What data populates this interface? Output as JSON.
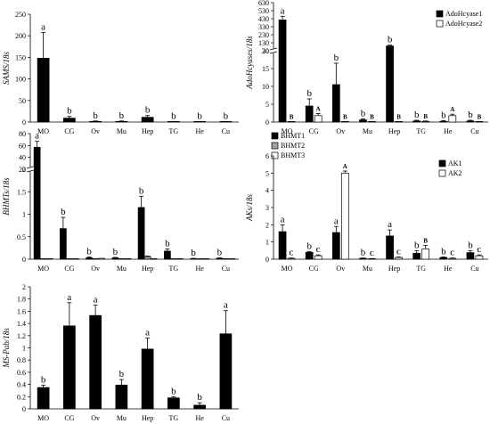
{
  "chart_data": [
    {
      "type": "bar",
      "ylabel": "SAMS/18s",
      "categories": [
        "MO",
        "CG",
        "Ov",
        "Mu",
        "Hep",
        "TG",
        "He",
        "Cu"
      ],
      "ylim": [
        0,
        250
      ],
      "yticks": [
        0,
        50,
        100,
        150,
        200,
        250
      ],
      "series": [
        {
          "values": [
            148,
            9,
            1.5,
            1.5,
            11,
            0.5,
            0.5,
            0.8
          ],
          "errors": [
            60,
            4,
            1,
            1,
            4,
            0.5,
            0.5,
            0.5
          ],
          "letters": [
            "a",
            "b",
            "b",
            "b",
            "b",
            "b",
            "b",
            "b"
          ],
          "color": "#000000"
        }
      ]
    },
    {
      "type": "bar",
      "ylabel": "AdoHcyases/18s",
      "categories": [
        "MO",
        "CG",
        "Ov",
        "Mu",
        "Hep",
        "TG",
        "He",
        "Cu"
      ],
      "axis_break": {
        "at": 20,
        "upper_range": [
          30,
          630
        ]
      },
      "yticks": [
        0,
        5,
        10,
        15,
        20,
        30,
        130,
        230,
        330,
        430,
        530,
        630
      ],
      "series": [
        {
          "name": "AdoHcyase1",
          "values": [
            415,
            4.5,
            10.5,
            0.6,
            90,
            0.3,
            0.2,
            0.3
          ],
          "errors": [
            45,
            2,
            6,
            0.3,
            10,
            0.2,
            0.2,
            0.2
          ],
          "letters": [
            "a",
            "b",
            "b",
            "b",
            "b",
            "b",
            "b",
            "b"
          ],
          "color": "#000000"
        },
        {
          "name": "AdoHcyase2",
          "values": [
            0.1,
            1.8,
            0.1,
            0.1,
            0.1,
            0.2,
            1.8,
            0.1
          ],
          "errors": [
            0,
            0.6,
            0,
            0,
            0,
            0.1,
            0.4,
            0
          ],
          "letters": [
            "B",
            "A",
            "B",
            "B",
            "B",
            "B",
            "A",
            "B"
          ],
          "color": "#ffffff"
        }
      ]
    },
    {
      "type": "bar",
      "ylabel": "BHMTs/18s",
      "categories": [
        "MO",
        "CG",
        "Ov",
        "Mu",
        "Hep",
        "TG",
        "He",
        "Cu"
      ],
      "axis_break": {
        "at": 2,
        "upper_range": [
          20,
          80
        ]
      },
      "yticks": [
        0,
        0.5,
        1,
        1.5,
        2,
        20,
        40,
        60,
        80
      ],
      "series": [
        {
          "name": "BHMT1",
          "values": [
            57,
            0.68,
            0.03,
            0.03,
            1.15,
            0.18,
            0.01,
            0.02
          ],
          "errors": [
            10,
            0.25,
            0.02,
            0.01,
            0.25,
            0.05,
            0.01,
            0.01
          ],
          "letters": [
            "a",
            "b",
            "b",
            "b",
            "b",
            "b",
            "b",
            "b"
          ],
          "color": "#000000"
        },
        {
          "name": "BHMT2",
          "values": [
            0.01,
            0.01,
            0.01,
            0.01,
            0.06,
            0.01,
            0.01,
            0.01
          ],
          "errors": [
            0,
            0,
            0,
            0,
            0.01,
            0,
            0,
            0
          ],
          "color": "#a0a0a0"
        },
        {
          "name": "BHMT3",
          "values": [
            0.01,
            0.01,
            0.02,
            0.01,
            0.01,
            0.01,
            0.01,
            0.01
          ],
          "errors": [
            0,
            0,
            0,
            0,
            0,
            0,
            0,
            0
          ],
          "color": "#ffffff"
        }
      ]
    },
    {
      "type": "bar",
      "ylabel": "AKs/18s",
      "categories": [
        "MO",
        "CG",
        "Ov",
        "Mu",
        "Hep",
        "TG",
        "He",
        "Cu"
      ],
      "ylim": [
        0,
        6
      ],
      "yticks": [
        0,
        1,
        2,
        3,
        4,
        5,
        6
      ],
      "series": [
        {
          "name": "AK1",
          "values": [
            1.6,
            0.4,
            1.55,
            0.05,
            1.35,
            0.35,
            0.1,
            0.38
          ],
          "errors": [
            0.4,
            0.05,
            0.35,
            0.02,
            0.35,
            0.15,
            0.03,
            0.12
          ],
          "letters": [
            "a",
            "b",
            "a",
            "b",
            "a",
            "b",
            "b",
            "b"
          ],
          "color": "#000000"
        },
        {
          "name": "AK2",
          "values": [
            0.05,
            0.2,
            5.0,
            0.03,
            0.1,
            0.6,
            0.05,
            0.2
          ],
          "errors": [
            0.02,
            0.05,
            0.12,
            0.01,
            0.03,
            0.2,
            0.02,
            0.05
          ],
          "letters": [
            "C",
            "C",
            "A",
            "C",
            "C",
            "B",
            "C",
            "C"
          ],
          "color": "#ffffff"
        }
      ]
    },
    {
      "type": "bar",
      "ylabel": "MS-Pab/18s",
      "categories": [
        "MO",
        "CG",
        "Ov",
        "Mu",
        "Hep",
        "TG",
        "He",
        "Cu"
      ],
      "ylim": [
        0,
        2
      ],
      "yticks": [
        0,
        0.2,
        0.4,
        0.6,
        0.8,
        1,
        1.2,
        1.4,
        1.6,
        1.8,
        2
      ],
      "series": [
        {
          "values": [
            0.35,
            1.36,
            1.53,
            0.39,
            0.98,
            0.18,
            0.06,
            1.23
          ],
          "errors": [
            0.04,
            0.38,
            0.17,
            0.09,
            0.18,
            0.02,
            0.04,
            0.38
          ],
          "letters": [
            "b",
            "a",
            "a",
            "b",
            "a",
            "b",
            "b",
            "a"
          ],
          "color": "#000000"
        }
      ]
    }
  ]
}
